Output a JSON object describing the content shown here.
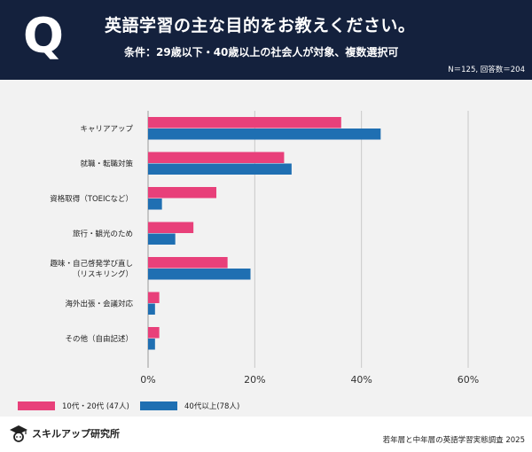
{
  "header": {
    "q_mark": "Q",
    "title": "英語学習の主な目的をお教えください。",
    "subtitle": "条件：29歳以下・40歳以上の社会人が対象、複数選択可",
    "sample": "N＝125, 回答数＝204"
  },
  "chart_data": {
    "type": "bar",
    "orientation": "horizontal",
    "categories": [
      [
        "キャリアアップ"
      ],
      [
        "就職・転職対策"
      ],
      [
        "資格取得（TOEICなど）"
      ],
      [
        "旅行・観光のため"
      ],
      [
        "趣味・自己啓発学び直し",
        "（リスキリング）"
      ],
      [
        "海外出張・会議対応"
      ],
      [
        "その他（自由記述）"
      ]
    ],
    "series": [
      {
        "name": "10代・20代 (47人)",
        "color": "#e8407a",
        "values": [
          36.2,
          25.5,
          12.8,
          8.5,
          14.9,
          2.1,
          2.1
        ]
      },
      {
        "name": "40代以上(78人)",
        "color": "#1f6fb2",
        "values": [
          43.6,
          26.9,
          2.6,
          5.1,
          19.2,
          1.3,
          1.3
        ]
      }
    ],
    "x_ticks": [
      "0%",
      "20%",
      "40%",
      "60%"
    ],
    "xlim": [
      0,
      60
    ],
    "grid": true
  },
  "footer": {
    "brand": "スキルアップ研究所",
    "source": "若年層と中年層の英語学習実態調査 2025"
  }
}
